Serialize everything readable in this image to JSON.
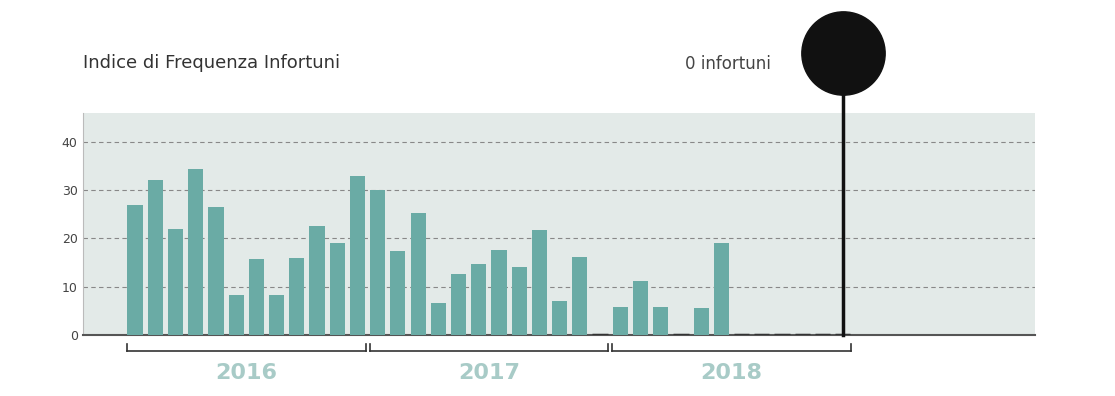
{
  "chart_data": {
    "type": "bar",
    "title": "Indice di Frequenza Infortuni",
    "categories": [
      null,
      null,
      null,
      null,
      null,
      null,
      null,
      null,
      null,
      null,
      null,
      null,
      null,
      null,
      null,
      null,
      null,
      null,
      null,
      null,
      null,
      null,
      null,
      null,
      null,
      null,
      null,
      null,
      null,
      null,
      null,
      null,
      null,
      null,
      null,
      null
    ],
    "values": [
      27,
      32,
      22,
      34.3,
      26.5,
      8.2,
      15.8,
      8.2,
      16,
      22.5,
      19,
      33,
      30,
      17.5,
      25.3,
      6.7,
      12.6,
      14.7,
      17.7,
      14.1,
      21.7,
      7,
      16.2,
      0,
      5.9,
      11.2,
      5.7,
      0,
      5.5,
      19,
      0,
      0,
      0,
      0,
      0,
      0
    ],
    "color": "#6aaba5",
    "groups": [
      {
        "label": "2016",
        "start": 0,
        "end": 11
      },
      {
        "label": "2017",
        "start": 12,
        "end": 23
      },
      {
        "label": "2018",
        "start": 24,
        "end": 35
      }
    ],
    "annotation": {
      "text": "0 infortuni",
      "x": 35
    },
    "ylim": [
      0,
      46
    ],
    "yticks": [
      0,
      10,
      20,
      30,
      40
    ],
    "grid": true
  }
}
